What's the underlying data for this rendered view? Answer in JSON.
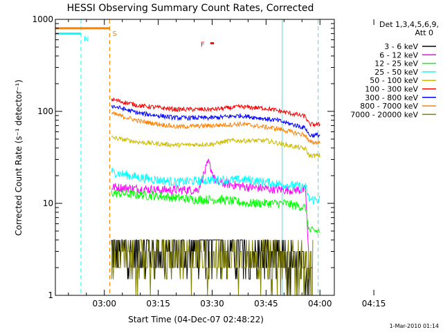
{
  "chart_data": {
    "type": "line",
    "title": "HESSI Observing Summary Count Rates, Corrected",
    "ylabel": "Corrected Count Rate (s⁻¹ detector⁻¹)",
    "xlabel": "Start Time (04-Dec-07 02:48:22)",
    "yscale": "log",
    "ylim": [
      1,
      1000
    ],
    "xlim_minutes": [
      -13.63,
      64.0
    ],
    "x_ticks": [
      "03:00",
      "03:15",
      "03:30",
      "03:45",
      "04:00",
      "04:15"
    ],
    "y_ticks": [
      "1",
      "10",
      "100",
      "1000"
    ],
    "legend_title": "Det 1,3,4,5,6,9, Att 0",
    "legend_title_line1": "Det 1,3,4,5,6,9,",
    "legend_title_line2": "Att 0",
    "legend_placement": "right",
    "flags": [
      {
        "label": "N",
        "color": "#00ffff",
        "x": [
          -14,
          -6.5
        ],
        "y": 700
      },
      {
        "label": "S",
        "color": "#ff8000",
        "x": [
          -14,
          1.5
        ],
        "y": 800
      },
      {
        "label": "F",
        "color": "#ff0000",
        "x": [
          29.5,
          30.5
        ],
        "y": 550
      }
    ],
    "vlines": [
      {
        "color": "#00ffff",
        "x": -6.5,
        "style": "dashed"
      },
      {
        "color": "#ff8000",
        "x": 1.5,
        "style": "dashed"
      },
      {
        "color": "#00ffff",
        "x": 49.5,
        "style": "solid"
      },
      {
        "color": "#00ffff",
        "x": 59.5,
        "style": "dashed"
      }
    ],
    "series": [
      {
        "name": "3 - 6 keV",
        "color": "#000000",
        "points": [
          [
            2,
            3
          ],
          [
            20,
            3
          ],
          [
            26,
            3
          ],
          [
            28,
            6
          ],
          [
            30,
            16
          ],
          [
            32,
            9
          ],
          [
            33,
            3
          ],
          [
            44,
            3
          ],
          [
            54,
            2
          ],
          [
            58,
            2
          ]
        ]
      },
      {
        "name": "6 - 12 keV",
        "color": "#ff00ff",
        "points": [
          [
            2,
            15
          ],
          [
            15,
            14
          ],
          [
            26,
            14
          ],
          [
            29,
            28
          ],
          [
            31,
            17
          ],
          [
            40,
            15
          ],
          [
            50,
            14
          ],
          [
            56,
            14
          ],
          [
            57,
            2
          ]
        ]
      },
      {
        "name": "12 - 25 keV",
        "color": "#00ff00",
        "points": [
          [
            2,
            13
          ],
          [
            15,
            12
          ],
          [
            25,
            11
          ],
          [
            32,
            11
          ],
          [
            40,
            10
          ],
          [
            50,
            10
          ],
          [
            56,
            9
          ],
          [
            57,
            5
          ],
          [
            60,
            5
          ]
        ]
      },
      {
        "name": "25 - 50 keV",
        "color": "#00ffff",
        "points": [
          [
            2,
            22
          ],
          [
            10,
            19
          ],
          [
            20,
            17
          ],
          [
            30,
            18
          ],
          [
            40,
            18
          ],
          [
            50,
            16
          ],
          [
            56,
            15
          ],
          [
            57,
            11
          ],
          [
            60,
            11
          ]
        ]
      },
      {
        "name": "50 - 100 keV",
        "color": "#ccbb00",
        "points": [
          [
            2,
            52
          ],
          [
            10,
            46
          ],
          [
            20,
            43
          ],
          [
            30,
            44
          ],
          [
            35,
            48
          ],
          [
            45,
            48
          ],
          [
            56,
            39
          ],
          [
            57,
            33
          ],
          [
            60,
            33
          ]
        ]
      },
      {
        "name": "100 - 300 keV",
        "color": "#ff0000",
        "points": [
          [
            2,
            135
          ],
          [
            10,
            115
          ],
          [
            20,
            105
          ],
          [
            30,
            105
          ],
          [
            38,
            112
          ],
          [
            45,
            108
          ],
          [
            56,
            88
          ],
          [
            57,
            72
          ],
          [
            60,
            72
          ]
        ]
      },
      {
        "name": "300 - 800 keV",
        "color": "#0000ff",
        "points": [
          [
            2,
            115
          ],
          [
            10,
            95
          ],
          [
            20,
            85
          ],
          [
            30,
            85
          ],
          [
            38,
            90
          ],
          [
            48,
            80
          ],
          [
            56,
            66
          ],
          [
            57,
            55
          ],
          [
            60,
            55
          ]
        ]
      },
      {
        "name": "800 - 7000 keV",
        "color": "#ff8000",
        "points": [
          [
            2,
            95
          ],
          [
            10,
            78
          ],
          [
            20,
            68
          ],
          [
            30,
            70
          ],
          [
            38,
            73
          ],
          [
            48,
            65
          ],
          [
            56,
            55
          ],
          [
            57,
            46
          ],
          [
            60,
            46
          ]
        ]
      },
      {
        "name": "7000 - 20000 keV",
        "color": "#808000",
        "points": [
          [
            2,
            2.5
          ],
          [
            20,
            2.5
          ],
          [
            35,
            2.6
          ],
          [
            50,
            2.4
          ],
          [
            58,
            2
          ]
        ]
      }
    ]
  },
  "footer": {
    "date": "1-Mar-2010 01:14"
  }
}
